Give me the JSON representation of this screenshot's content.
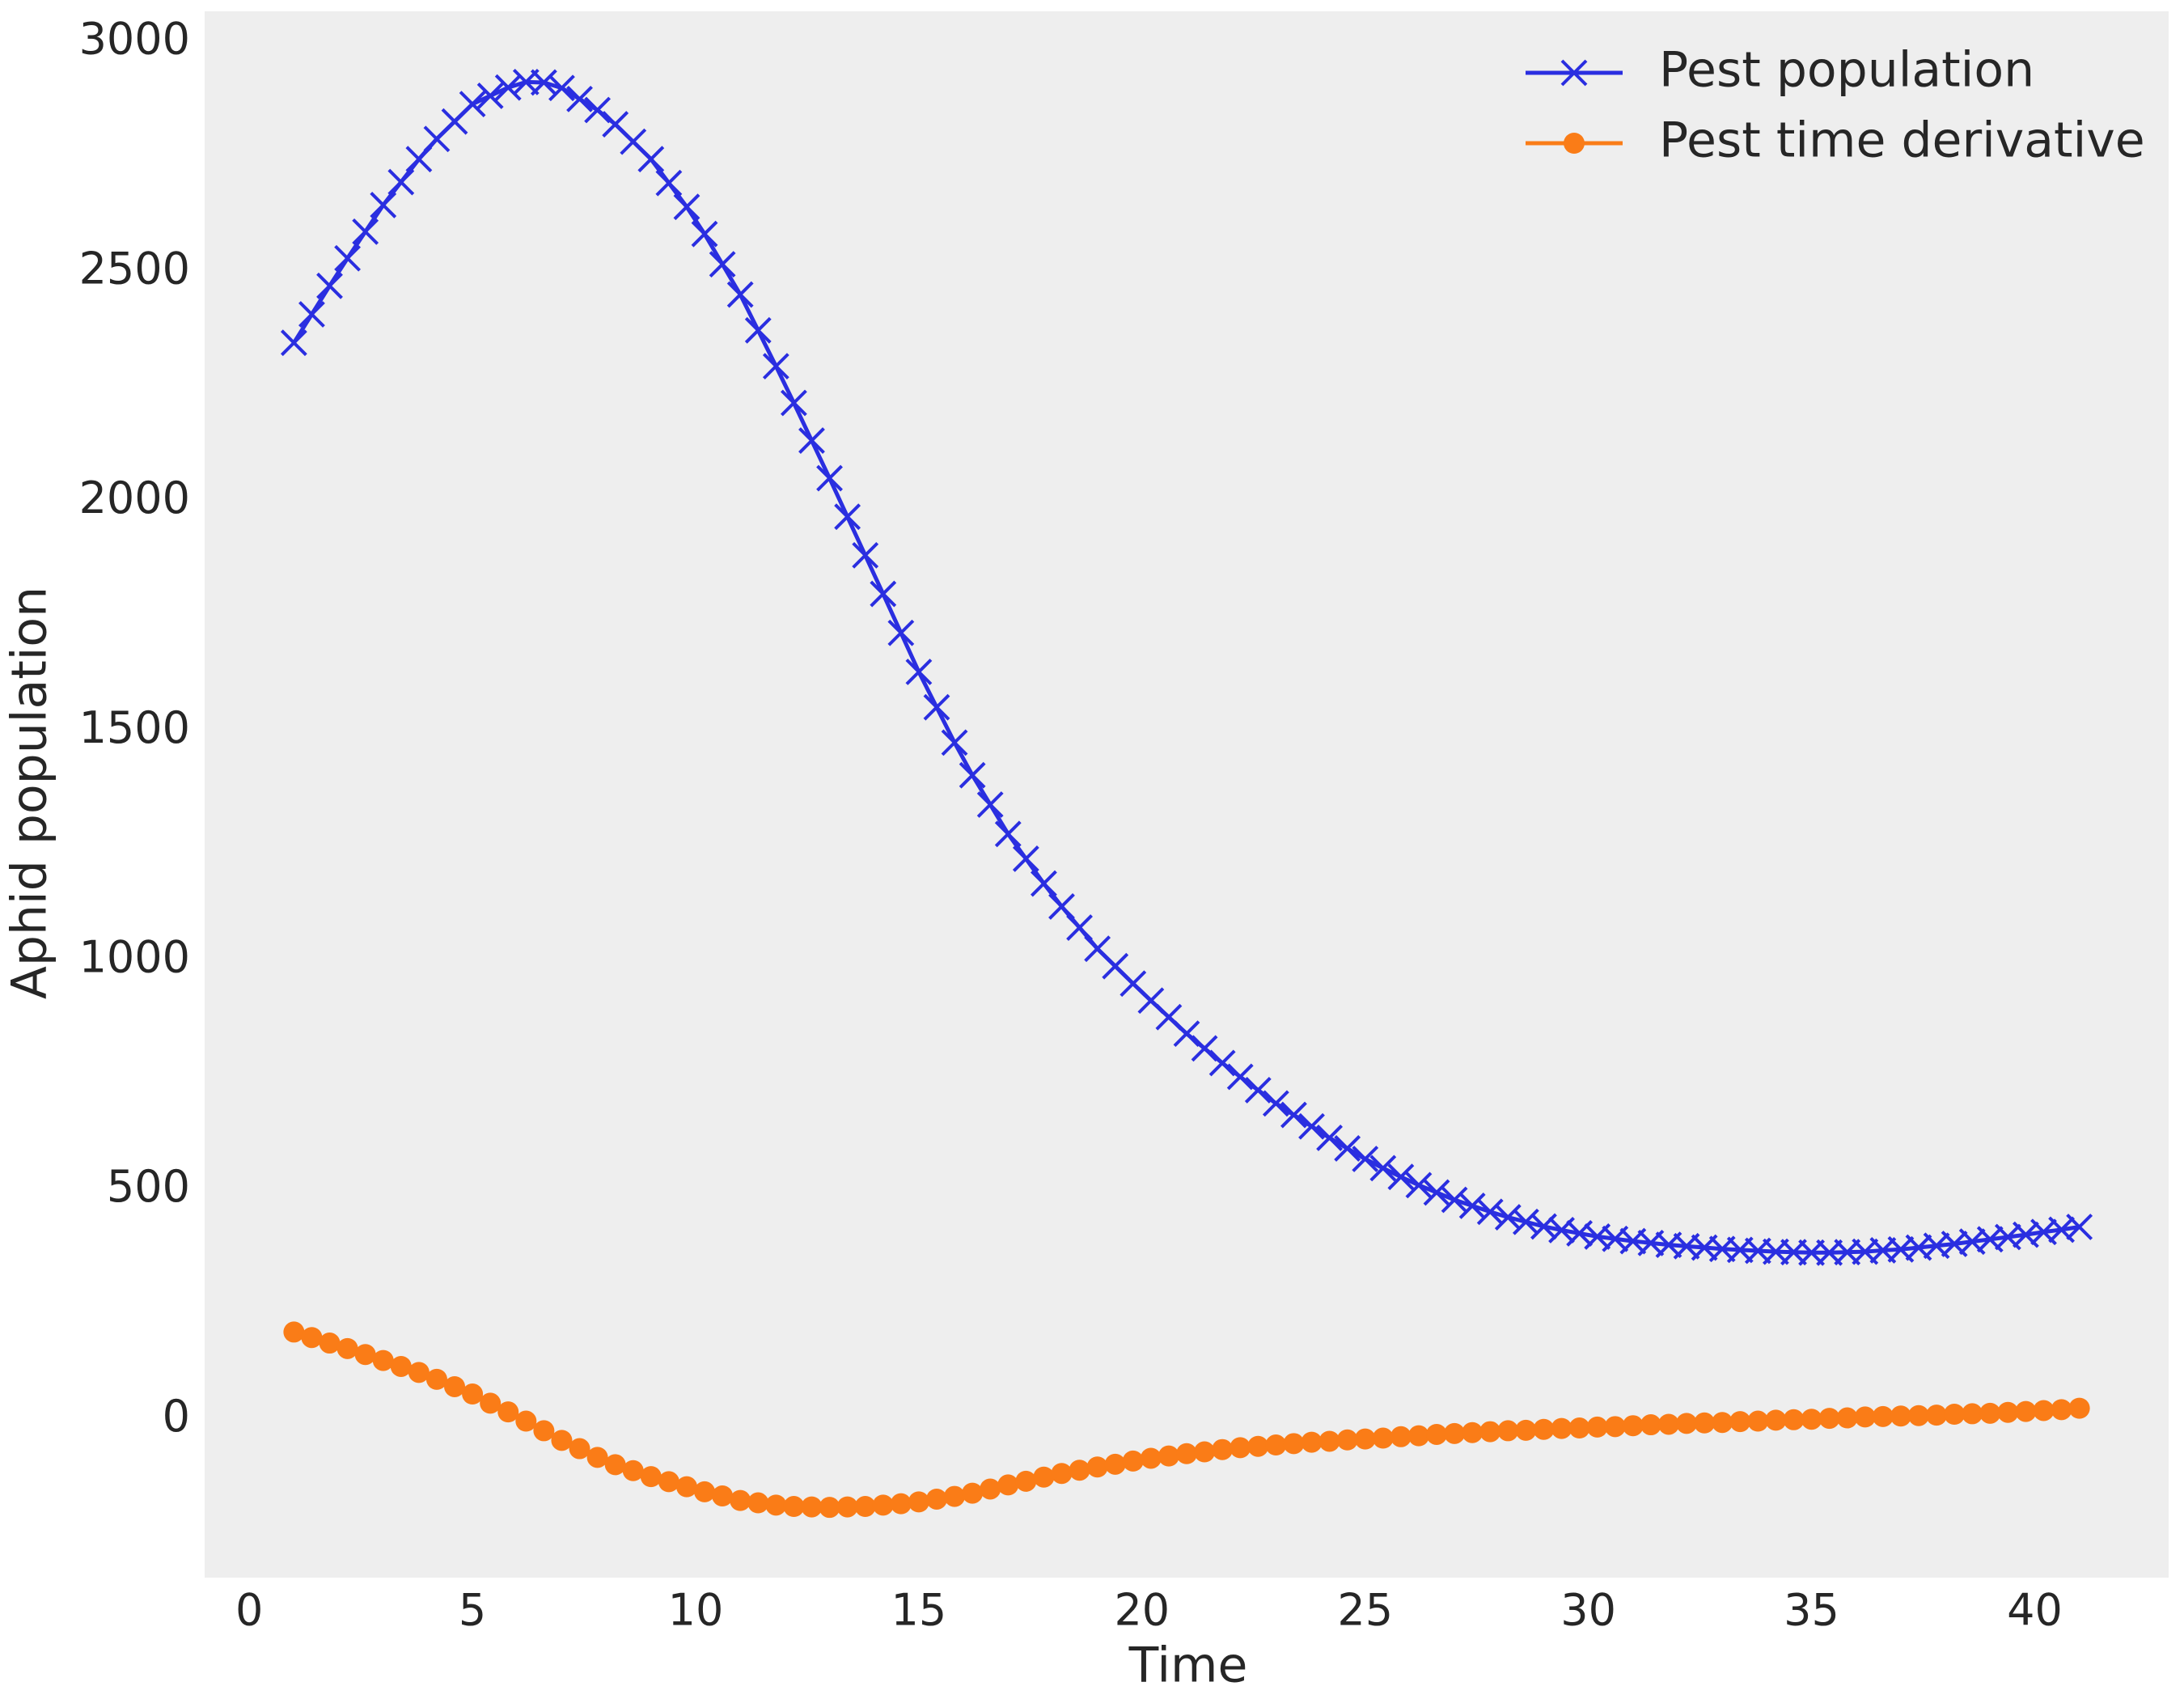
{
  "chart_data": {
    "type": "line",
    "xlabel": "Time",
    "ylabel": "Aphid population",
    "x": [
      1.0,
      1.4,
      1.8,
      2.2,
      2.6,
      3.0,
      3.4,
      3.8,
      4.2,
      4.6,
      5.0,
      5.4,
      5.8,
      6.2,
      6.6,
      7.0,
      7.4,
      7.8,
      8.2,
      8.6,
      9.0,
      9.4,
      9.8,
      10.2,
      10.6,
      11.0,
      11.4,
      11.8,
      12.2,
      12.6,
      13.0,
      13.4,
      13.8,
      14.2,
      14.6,
      15.0,
      15.4,
      15.8,
      16.2,
      16.6,
      17.0,
      17.4,
      17.8,
      18.2,
      18.6,
      19.0,
      19.4,
      19.8,
      20.2,
      20.6,
      21.0,
      21.4,
      21.8,
      22.2,
      22.6,
      23.0,
      23.4,
      23.8,
      24.2,
      24.6,
      25.0,
      25.4,
      25.8,
      26.2,
      26.6,
      27.0,
      27.4,
      27.8,
      28.2,
      28.6,
      29.0,
      29.4,
      29.8,
      30.2,
      30.6,
      31.0,
      31.4,
      31.8,
      32.2,
      32.6,
      33.0,
      33.4,
      33.8,
      34.2,
      34.6,
      35.0,
      35.4,
      35.8,
      36.2,
      36.6,
      37.0,
      37.4,
      37.8,
      38.2,
      38.6,
      39.0,
      39.4,
      39.8,
      40.2,
      40.6,
      41.0
    ],
    "series": [
      {
        "name": "Pest population",
        "color": "#2a2ee0",
        "marker": "x",
        "values": [
          2345,
          2407,
          2469,
          2529,
          2587,
          2645,
          2695,
          2745,
          2789,
          2827,
          2865,
          2883,
          2901,
          2913,
          2912,
          2900,
          2876,
          2852,
          2821,
          2783,
          2745,
          2693,
          2641,
          2582,
          2516,
          2450,
          2372,
          2294,
          2214,
          2132,
          2050,
          1966,
          1882,
          1798,
          1713,
          1628,
          1551,
          1474,
          1403,
          1339,
          1275,
          1221,
          1167,
          1117,
          1071,
          1025,
          987,
          949,
          912,
          876,
          840,
          808,
          776,
          746,
          717,
          688,
          663,
          638,
          613,
          590,
          567,
          547,
          528,
          510,
          494,
          478,
          465,
          452,
          440,
          430,
          420,
          412,
          405,
          398,
          393,
          388,
          384,
          380,
          377,
          374,
          371,
          369,
          367,
          365,
          364,
          363,
          363,
          364,
          365,
          368,
          370,
          374,
          378,
          382,
          387,
          392,
          397,
          402,
          408,
          413,
          419
        ]
      },
      {
        "name": "Pest time derivative",
        "color": "#fa7c17",
        "marker": "o",
        "values": [
          190,
          178,
          166,
          154,
          141,
          128,
          115,
          102,
          87,
          71,
          55,
          35,
          16,
          -4,
          -25,
          -46,
          -64,
          -83,
          -99,
          -112,
          -125,
          -136,
          -147,
          -158,
          -167,
          -177,
          -182,
          -187,
          -190,
          -191,
          -192,
          -191,
          -190,
          -187,
          -184,
          -180,
          -174,
          -168,
          -161,
          -152,
          -143,
          -135,
          -126,
          -118,
          -111,
          -104,
          -98,
          -91,
          -85,
          -80,
          -75,
          -71,
          -66,
          -62,
          -59,
          -56,
          -53,
          -50,
          -48,
          -45,
          -43,
          -41,
          -38,
          -36,
          -33,
          -31,
          -29,
          -27,
          -25,
          -24,
          -22,
          -20,
          -19,
          -17,
          -16,
          -14,
          -12,
          -11,
          -9,
          -8,
          -7,
          -5,
          -4,
          -2,
          -1,
          0,
          2,
          3,
          5,
          6,
          7,
          8,
          9,
          11,
          12,
          13,
          15,
          17,
          19,
          21,
          24
        ]
      }
    ],
    "xlim": [
      -1,
      43
    ],
    "ylim": [
      -345,
      3067
    ],
    "xticks": [
      0,
      5,
      10,
      15,
      20,
      25,
      30,
      35,
      40
    ],
    "yticks": [
      0,
      500,
      1000,
      1500,
      2000,
      2500,
      3000
    ],
    "grid": false,
    "legend": "upper right"
  }
}
